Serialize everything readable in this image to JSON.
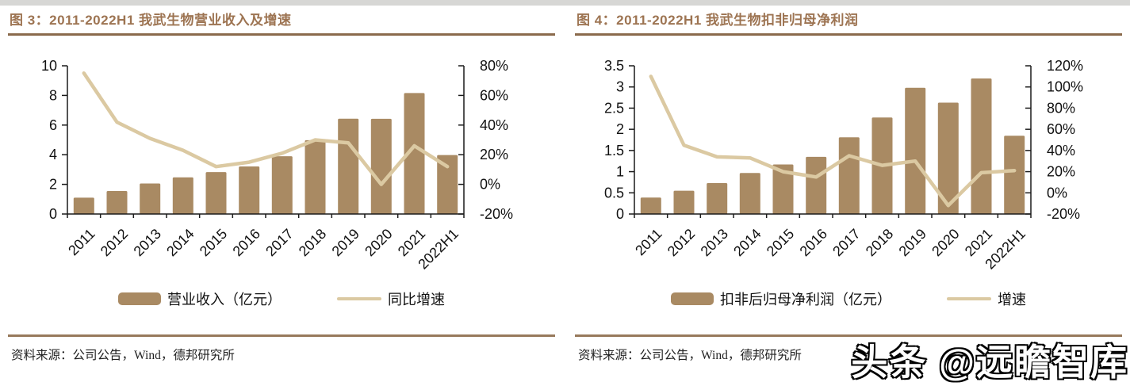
{
  "page": {
    "watermark": "头条 @远瞻智库",
    "colors": {
      "bar": "#a98a63",
      "line": "#dbc9a2",
      "title": "#9d7452",
      "rule": "#8a6a4c",
      "axis": "#1a1a1a",
      "label": "#111111"
    }
  },
  "chart_data": [
    {
      "type": "bar+line",
      "title": "图 3：2011-2022H1 我武生物营业收入及增速",
      "categories": [
        "2011",
        "2012",
        "2013",
        "2014",
        "2015",
        "2016",
        "2017",
        "2018",
        "2019",
        "2020",
        "2021",
        "2022H1"
      ],
      "series": [
        {
          "name": "营业收入（亿元）",
          "type": "bar",
          "axis": "left",
          "values": [
            1.1,
            1.55,
            2.06,
            2.47,
            2.83,
            3.21,
            3.9,
            4.98,
            6.43,
            6.42,
            8.16,
            3.98
          ]
        },
        {
          "name": "同比增速",
          "type": "line",
          "axis": "right",
          "unit": "%",
          "values": [
            75,
            42,
            31,
            23,
            12,
            15,
            21,
            30,
            28,
            0,
            26,
            12
          ]
        }
      ],
      "axes": {
        "left": {
          "min": 0,
          "max": 10,
          "step": 2,
          "labels": [
            "0",
            "2",
            "4",
            "6",
            "8",
            "10"
          ]
        },
        "right": {
          "min": -20,
          "max": 80,
          "step": 20,
          "labels": [
            "-20%",
            "0%",
            "20%",
            "40%",
            "60%",
            "80%"
          ]
        }
      },
      "legend_position": "bottom",
      "grid": false,
      "source": "资料来源：公司公告，Wind，德邦研究所"
    },
    {
      "type": "bar+line",
      "title": "图 4：2011-2022H1 我武生物扣非归母净利润",
      "categories": [
        "2011",
        "2012",
        "2013",
        "2014",
        "2015",
        "2016",
        "2017",
        "2018",
        "2019",
        "2020",
        "2021",
        "2022H1"
      ],
      "series": [
        {
          "name": "扣非后归母净利润（亿元）",
          "type": "bar",
          "axis": "left",
          "values": [
            0.39,
            0.55,
            0.73,
            0.97,
            1.17,
            1.35,
            1.81,
            2.28,
            2.98,
            2.63,
            3.2,
            1.85
          ]
        },
        {
          "name": "增速",
          "type": "line",
          "axis": "right",
          "unit": "%",
          "values": [
            110,
            45,
            34,
            33,
            20,
            15,
            35,
            26,
            30,
            -12,
            19,
            21
          ]
        }
      ],
      "axes": {
        "left": {
          "min": 0,
          "max": 3.5,
          "step": 0.5,
          "labels": [
            "0",
            "0.5",
            "1",
            "1.5",
            "2",
            "2.5",
            "3",
            "3.5"
          ]
        },
        "right": {
          "min": -20,
          "max": 120,
          "step": 20,
          "labels": [
            "-20%",
            "0%",
            "20%",
            "40%",
            "60%",
            "80%",
            "100%",
            "120%"
          ]
        }
      },
      "legend_position": "bottom",
      "grid": false,
      "source": "资料来源：公司公告，Wind，德邦研究所"
    }
  ]
}
